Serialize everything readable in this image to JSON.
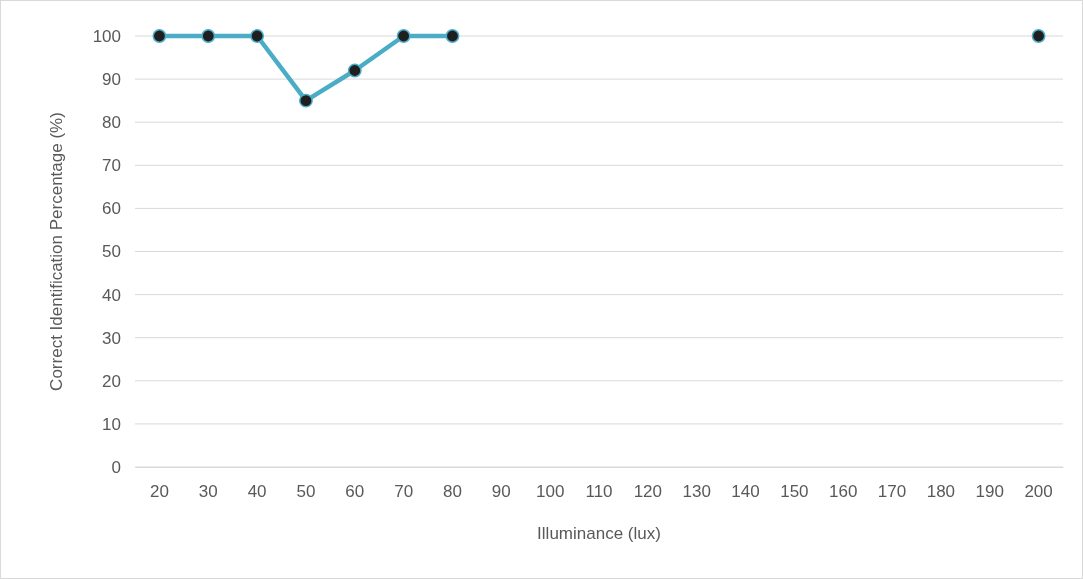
{
  "chart_data": {
    "type": "line",
    "xlabel": "Illuminance (lux)",
    "ylabel": "Correct Identification Percentage (%)",
    "categories": [
      "20",
      "30",
      "40",
      "50",
      "60",
      "70",
      "80",
      "90",
      "100",
      "110",
      "120",
      "130",
      "140",
      "150",
      "160",
      "170",
      "180",
      "190",
      "200"
    ],
    "series": [
      {
        "color": "#4bacc6",
        "values": [
          100,
          100,
          100,
          85,
          92,
          100,
          100,
          null,
          null,
          null,
          null,
          null,
          null,
          null,
          null,
          null,
          null,
          null,
          100
        ]
      }
    ],
    "ylim": [
      0,
      100
    ],
    "yticks": [
      0,
      10,
      20,
      30,
      40,
      50,
      60,
      70,
      80,
      90,
      100
    ],
    "grid": "y",
    "marker": "circle",
    "line_style": "solid"
  }
}
